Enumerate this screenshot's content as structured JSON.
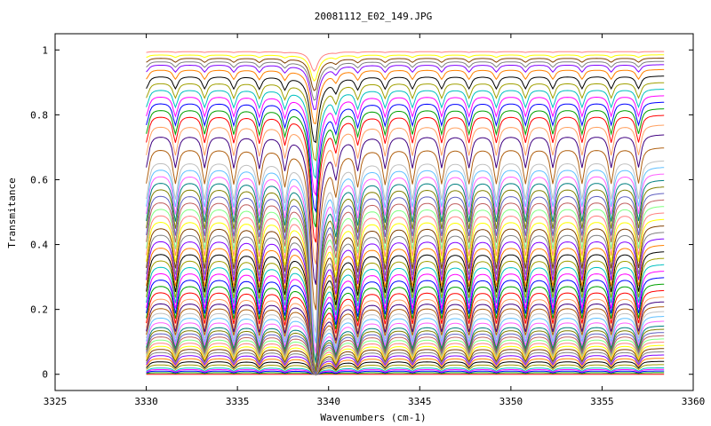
{
  "chart_data": {
    "type": "line",
    "title": "20081112_E02_149.JPG",
    "xlabel": "Wavenumbers (cm-1)",
    "ylabel": "Transmitance",
    "xlim": [
      3325,
      3360
    ],
    "ylim": [
      -0.05,
      1.05
    ],
    "xticks": [
      "3325",
      "3330",
      "3335",
      "3340",
      "3345",
      "3350",
      "3355",
      "3360"
    ],
    "yticks": [
      "0",
      "0.2",
      "0.4",
      "0.6",
      "0.8",
      "1"
    ],
    "grid": false,
    "legend": "none",
    "data_x_range": [
      3330,
      3358.4
    ],
    "absorption_lines_cm1": [
      3330.0,
      3331.6,
      3333.2,
      3334.8,
      3336.2,
      3337.6,
      3339.2,
      3340.4,
      3341.6,
      3343.1,
      3344.6,
      3346.2,
      3347.7,
      3349.2,
      3350.8,
      3352.3,
      3353.9,
      3355.5,
      3357.0
    ],
    "series_baselines": [
      0.0,
      0.005,
      0.01,
      0.015,
      0.02,
      0.03,
      0.04,
      0.05,
      0.06,
      0.07,
      0.08,
      0.09,
      0.1,
      0.11,
      0.12,
      0.13,
      0.14,
      0.15,
      0.165,
      0.18,
      0.195,
      0.21,
      0.225,
      0.24,
      0.26,
      0.28,
      0.3,
      0.32,
      0.34,
      0.36,
      0.38,
      0.4,
      0.42,
      0.44,
      0.46,
      0.48,
      0.5,
      0.52,
      0.54,
      0.56,
      0.58,
      0.6,
      0.62,
      0.64,
      0.66,
      0.7,
      0.74,
      0.77,
      0.8,
      0.82,
      0.84,
      0.86,
      0.88,
      0.9,
      0.92,
      0.94,
      0.955,
      0.965,
      0.975,
      0.985,
      0.995
    ],
    "series_colors": [
      "#ff0000",
      "#00a000",
      "#0000ff",
      "#ff00ff",
      "#00c0c0",
      "#a0a000",
      "#000000",
      "#ff8000",
      "#8000ff",
      "#808080",
      "#804000",
      "#ffff00",
      "#ff8080",
      "#80ff80",
      "#c06060",
      "#6060c0",
      "#808000",
      "#008080",
      "#ff60ff",
      "#60c0ff",
      "#c0c0c0",
      "#b06010",
      "#400080",
      "#ffa060"
    ]
  }
}
